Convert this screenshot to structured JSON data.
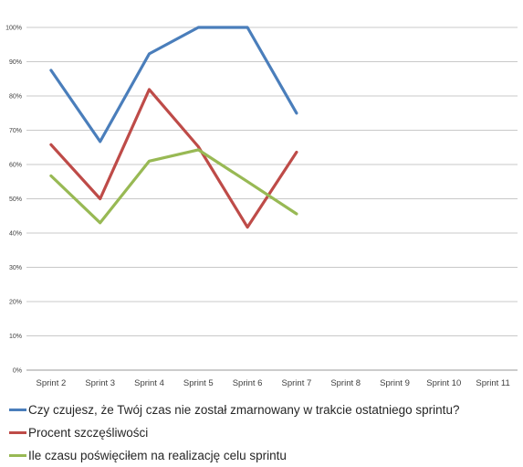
{
  "chart_data": {
    "type": "line",
    "categories": [
      "Sprint 2",
      "Sprint 3",
      "Sprint 4",
      "Sprint 5",
      "Sprint 6",
      "Sprint 7",
      "Sprint 8",
      "Sprint 9",
      "Sprint 10",
      "Sprint 11"
    ],
    "ylim": [
      0,
      100
    ],
    "y_ticks": [
      "0%",
      "10%",
      "20%",
      "30%",
      "40%",
      "50%",
      "60%",
      "70%",
      "80%",
      "90%",
      "100%"
    ],
    "grid": true,
    "legend_position": "bottom",
    "series": [
      {
        "name": "Czy czujesz, że Twój czas nie został zmarnowany w trakcie ostatniego sprintu?",
        "color": "#4a7ebb",
        "values": [
          87.5,
          66.7,
          92.3,
          100,
          100,
          75,
          null,
          null,
          null,
          null
        ]
      },
      {
        "name": "Procent szczęśliwości",
        "color": "#be4b48",
        "values": [
          65.8,
          50,
          81.9,
          65.2,
          41.7,
          63.6,
          null,
          null,
          null,
          null
        ]
      },
      {
        "name": "Ile czasu poświęciłem na realizację celu sprintu",
        "color": "#98b954",
        "values": [
          56.7,
          43,
          61,
          64.3,
          55,
          45.6,
          null,
          null,
          null,
          null
        ]
      }
    ]
  }
}
